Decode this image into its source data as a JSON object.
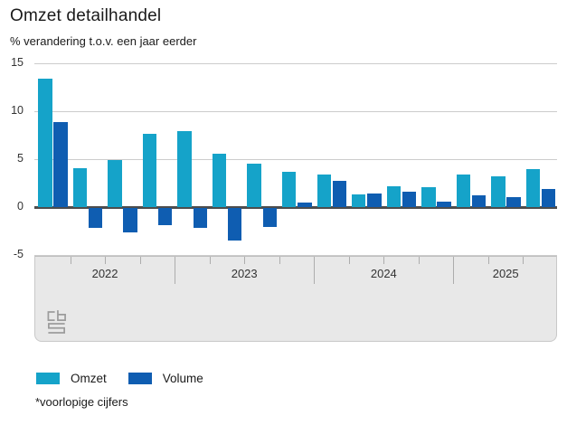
{
  "header": {
    "title": "Omzet detailhandel",
    "subtitle": "% verandering t.o.v. een jaar eerder"
  },
  "legend": {
    "items": [
      {
        "label": "Omzet",
        "color": "#15a3c9"
      },
      {
        "label": "Volume",
        "color": "#0f5db1"
      }
    ]
  },
  "footnote": "*voorlopige cijfers",
  "logo": {
    "name": "cbs-logo",
    "color": "#9c9c9c"
  },
  "chart_data": {
    "type": "bar",
    "title": "Omzet detailhandel",
    "subtitle": "% verandering t.o.v. een jaar eerder",
    "categories": [
      "2022 Q1",
      "2022 Q2",
      "2022 Q3",
      "2022 Q4",
      "2023 Q1",
      "2023 Q2",
      "2023 Q3",
      "2023 Q4",
      "2024 Q1",
      "2024 Q2",
      "2024 Q3",
      "2024 Q4",
      "2025 Q1",
      "2025 Q2",
      "2025 Q3"
    ],
    "series": [
      {
        "name": "Omzet",
        "color": "#15a3c9",
        "values": [
          13.4,
          4.1,
          4.9,
          7.6,
          7.9,
          5.6,
          4.5,
          3.7,
          3.4,
          1.3,
          2.2,
          2.1,
          3.4,
          3.2,
          4.0
        ]
      },
      {
        "name": "Volume",
        "color": "#0f5db1",
        "values": [
          8.9,
          -2.1,
          -2.5,
          -1.8,
          -2.1,
          -3.4,
          -2.0,
          0.5,
          2.7,
          1.4,
          1.6,
          0.6,
          1.2,
          1.0,
          1.9
        ]
      }
    ],
    "year_groups": [
      {
        "label": "2022",
        "quarters": 4
      },
      {
        "label": "2023",
        "quarters": 4
      },
      {
        "label": "2024",
        "quarters": 4
      },
      {
        "label": "2025",
        "quarters": 3
      }
    ],
    "xlabel": "",
    "ylabel": "% verandering t.o.v. een jaar eerder",
    "ylim": [
      -5,
      15
    ],
    "yticks": [
      15,
      10,
      5,
      0,
      -5
    ],
    "grid": "horizontal",
    "legend_position": "bottom-left"
  }
}
